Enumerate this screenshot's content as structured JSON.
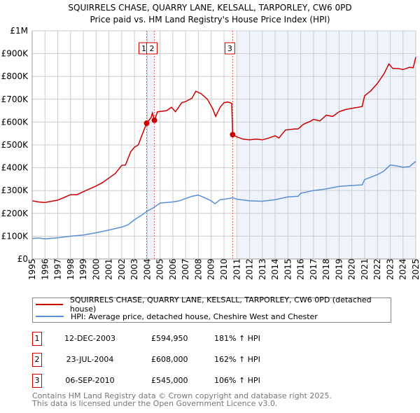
{
  "chart_data": {
    "type": "line",
    "title": "SQUIRRELS CHASE, QUARRY LANE, KELSALL, TARPORLEY, CW6 0PD",
    "subtitle": "Price paid vs. HM Land Registry's House Price Index (HPI)",
    "xlim": [
      1995,
      2025
    ],
    "ylim": [
      0,
      1000000
    ],
    "x_ticks": [
      "1995",
      "1996",
      "1997",
      "1998",
      "1999",
      "2000",
      "2001",
      "2002",
      "2003",
      "2004",
      "2005",
      "2006",
      "2007",
      "2008",
      "2009",
      "2010",
      "2011",
      "2012",
      "2013",
      "2014",
      "2015",
      "2016",
      "2017",
      "2018",
      "2019",
      "2020",
      "2021",
      "2022",
      "2023",
      "2024",
      "2025"
    ],
    "y_ticks": [
      {
        "v": 0,
        "label": "£0"
      },
      {
        "v": 100000,
        "label": "£100K"
      },
      {
        "v": 200000,
        "label": "£200K"
      },
      {
        "v": 300000,
        "label": "£300K"
      },
      {
        "v": 400000,
        "label": "£400K"
      },
      {
        "v": 500000,
        "label": "£500K"
      },
      {
        "v": 600000,
        "label": "£600K"
      },
      {
        "v": 700000,
        "label": "£700K"
      },
      {
        "v": 800000,
        "label": "£800K"
      },
      {
        "v": 900000,
        "label": "£900K"
      },
      {
        "v": 1000000,
        "label": "£1M"
      }
    ],
    "grid": true,
    "series": [
      {
        "name": "SQUIRRELS CHASE, QUARRY LANE, KELSALL, TARPORLEY, CW6 0PD (detached house)",
        "color": "#cc0000",
        "x": [
          1995,
          1995.5,
          1996,
          1997,
          1997.5,
          1998,
          1998.5,
          1999,
          2000,
          2000.5,
          2001,
          2001.5,
          2002,
          2002.3,
          2002.7,
          2003,
          2003.3,
          2003.6,
          2003.95,
          2004.3,
          2004.4,
          2004.56,
          2004.8,
          2005.5,
          2005.9,
          2006.2,
          2006.7,
          2007,
          2007.5,
          2007.8,
          2008.2,
          2008.7,
          2009.1,
          2009.35,
          2009.7,
          2010,
          2010.3,
          2010.6,
          2010.68,
          2011,
          2011.5,
          2012,
          2012.5,
          2013,
          2013.5,
          2014,
          2014.3,
          2014.8,
          2015.5,
          2015.8,
          2016.2,
          2016.8,
          2017,
          2017.5,
          2018,
          2018.5,
          2019,
          2019.5,
          2020,
          2020.8,
          2021,
          2021.5,
          2022,
          2022.5,
          2022.9,
          2023.2,
          2023.6,
          2024,
          2024.5,
          2024.8,
          2025
        ],
        "y": [
          255000,
          250000,
          248000,
          258000,
          270000,
          282000,
          282000,
          295000,
          320000,
          335000,
          355000,
          375000,
          410000,
          412000,
          470000,
          490000,
          500000,
          545000,
          594950,
          620000,
          640000,
          608000,
          645000,
          650000,
          665000,
          645000,
          685000,
          690000,
          705000,
          735000,
          725000,
          700000,
          660000,
          625000,
          665000,
          685000,
          688000,
          682000,
          545000,
          535000,
          525000,
          522000,
          525000,
          522000,
          530000,
          540000,
          530000,
          565000,
          570000,
          570000,
          590000,
          605000,
          612000,
          605000,
          630000,
          625000,
          645000,
          655000,
          660000,
          668000,
          715000,
          738000,
          770000,
          810000,
          855000,
          835000,
          835000,
          830000,
          840000,
          838000,
          885000
        ]
      },
      {
        "name": "HPI: Average price, detached house, Cheshire West and Chester",
        "color": "#5b8fd6",
        "x": [
          1995,
          1995.5,
          1996,
          1997,
          1998,
          1999,
          2000,
          2001,
          2002,
          2002.5,
          2003,
          2003.5,
          2004,
          2004.5,
          2005,
          2006,
          2006.5,
          2007,
          2007.5,
          2008,
          2008.5,
          2009,
          2009.3,
          2009.7,
          2010,
          2010.7,
          2011,
          2012,
          2013,
          2014,
          2015,
          2015.8,
          2016,
          2017,
          2018,
          2019,
          2020,
          2020.8,
          2021,
          2022,
          2022.5,
          2023,
          2023.5,
          2024,
          2024.5,
          2025
        ],
        "y": [
          90000,
          92000,
          88000,
          93000,
          100000,
          105000,
          115000,
          127000,
          140000,
          150000,
          172000,
          190000,
          210000,
          225000,
          245000,
          250000,
          255000,
          265000,
          275000,
          280000,
          268000,
          255000,
          242000,
          260000,
          262000,
          268000,
          262000,
          255000,
          253000,
          260000,
          272000,
          275000,
          288000,
          300000,
          307000,
          318000,
          322000,
          325000,
          348000,
          370000,
          385000,
          412000,
          408000,
          402000,
          405000,
          428000
        ]
      }
    ],
    "shaded_ranges": [
      [
        2003.95,
        2004.56
      ],
      [
        2011.0,
        2025.0
      ]
    ],
    "sales": [
      {
        "n": "1",
        "x": 2003.95,
        "y": 594950,
        "date": "12-DEC-2003",
        "price": "£594,950",
        "hpi": "181% ↑ HPI"
      },
      {
        "n": "2",
        "x": 2004.56,
        "y": 608000,
        "date": "23-JUL-2004",
        "price": "£608,000",
        "hpi": "162% ↑ HPI"
      },
      {
        "n": "3",
        "x": 2010.68,
        "y": 545000,
        "date": "06-SEP-2010",
        "price": "£545,000",
        "hpi": "106% ↑ HPI"
      }
    ],
    "legend_placement": "bottom"
  },
  "footer": {
    "line1": "Contains HM Land Registry data © Crown copyright and database right 2025.",
    "line2": "This data is licensed under the Open Government Licence v3.0."
  }
}
